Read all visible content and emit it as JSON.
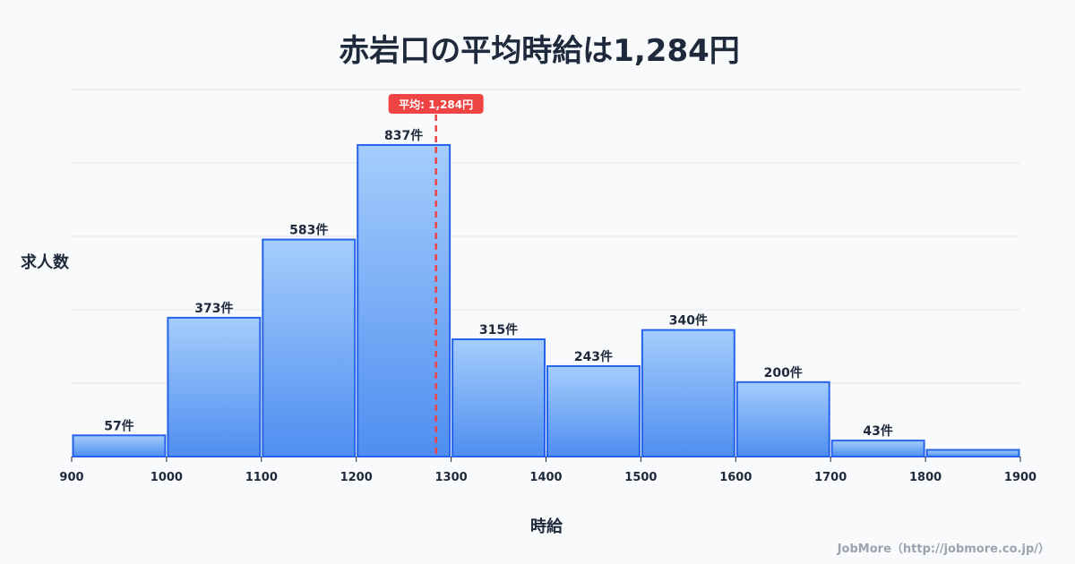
{
  "chart_data": {
    "type": "bar",
    "title": "赤岩口の平均時給は1,284円",
    "xlabel": "時給",
    "ylabel": "求人数",
    "bin_edges": [
      900,
      1000,
      1100,
      1200,
      1300,
      1400,
      1500,
      1600,
      1700,
      1800,
      1900
    ],
    "x_tick_labels": [
      "900",
      "1000",
      "1100",
      "1200",
      "1300",
      "1400",
      "1500",
      "1600",
      "1700",
      "1800",
      "1900"
    ],
    "values": [
      57,
      373,
      583,
      837,
      315,
      243,
      340,
      200,
      43,
      18
    ],
    "value_labels": [
      "57件",
      "373件",
      "583件",
      "837件",
      "315件",
      "243件",
      "340件",
      "200件",
      "43件",
      ""
    ],
    "ylim": [
      0,
      986
    ],
    "grid": true,
    "mean": 1284,
    "mean_label": "平均: 1,284円",
    "colors": {
      "bar_top": "#a5cdfc",
      "bar_bottom": "#4f8ef0",
      "bar_stroke": "#2563eb",
      "mean_line": "#ef4444",
      "text": "#1e293b"
    }
  },
  "credit": "JobMore（http://jobmore.co.jp/）"
}
